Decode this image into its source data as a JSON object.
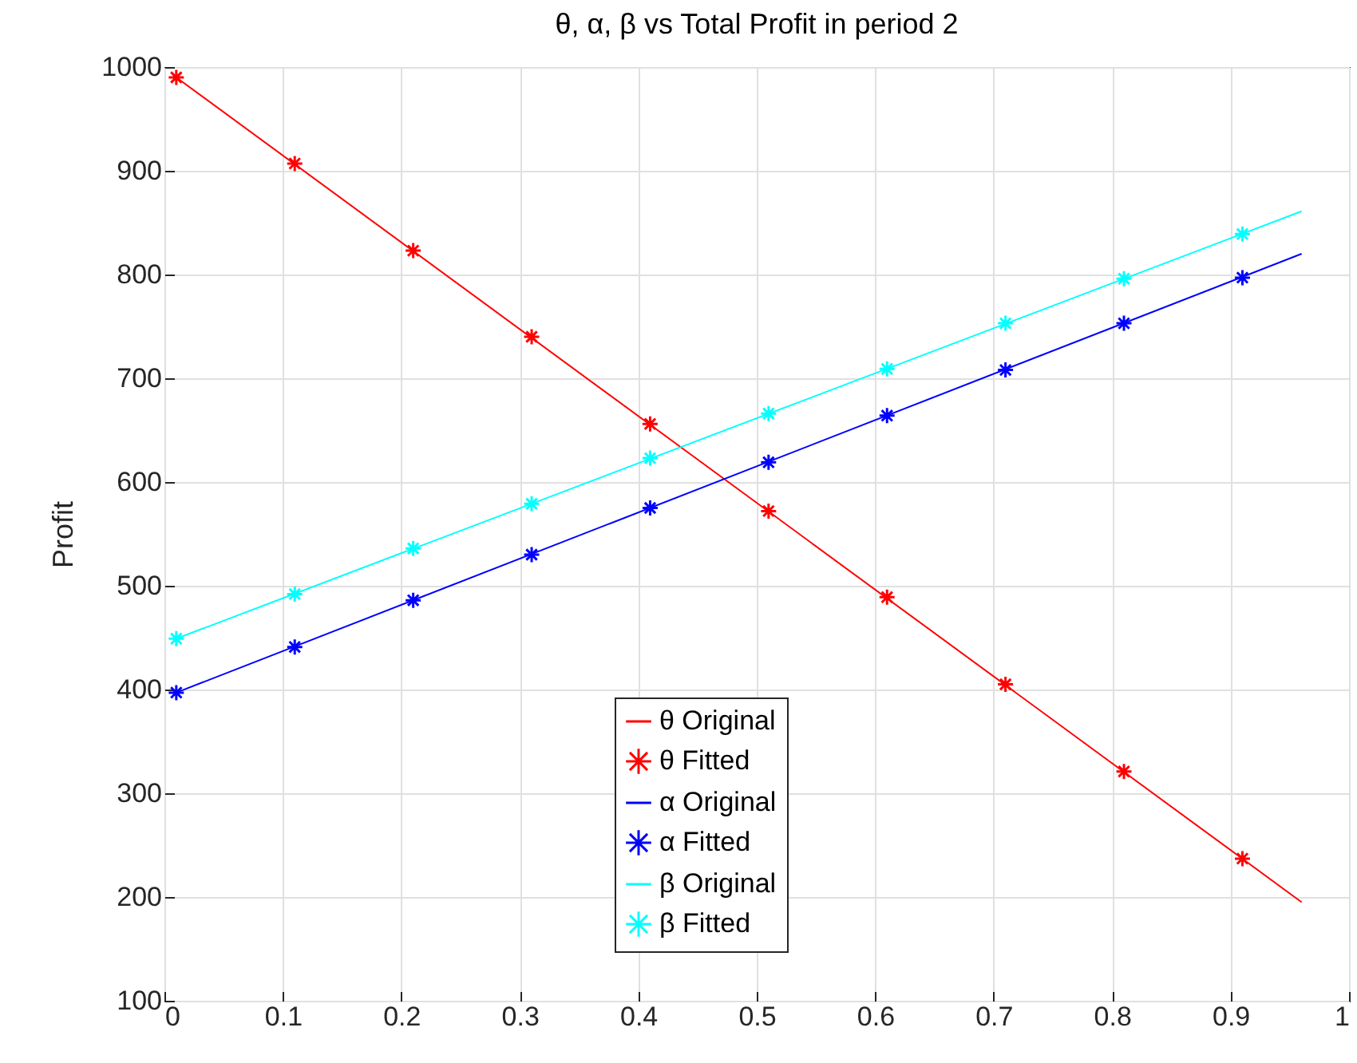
{
  "chart_data": {
    "type": "line",
    "title": "θ, α, β vs Total Profit in period 2",
    "ylabel": "Profit",
    "xlim": [
      0,
      1
    ],
    "xticks": [
      0,
      0.1,
      0.2,
      0.3,
      0.4,
      0.5,
      0.6,
      0.7,
      0.8,
      0.9,
      1
    ],
    "ylim": [
      100,
      1000
    ],
    "yticks": [
      100,
      200,
      300,
      400,
      500,
      600,
      700,
      800,
      900,
      1000
    ],
    "grid": true,
    "legend": "bottom",
    "line_style": "solid",
    "series": [
      {
        "name": "θ Original",
        "type": "line",
        "color": "#ff0000",
        "x": [
          0.01,
          0.96
        ],
        "values": [
          990,
          195
        ]
      },
      {
        "name": "θ Fitted",
        "type": "scatter",
        "marker": "cross",
        "color": "#ff0000",
        "x": [
          0.01,
          0.11,
          0.21,
          0.31,
          0.41,
          0.51,
          0.61,
          0.71,
          0.81,
          0.91
        ],
        "values": [
          990,
          907,
          823,
          740,
          656,
          572,
          489,
          405,
          321,
          237
        ]
      },
      {
        "name": "α Original",
        "type": "line",
        "color": "#0000ff",
        "x": [
          0.01,
          0.96
        ],
        "values": [
          397,
          820
        ]
      },
      {
        "name": "α Fitted",
        "type": "scatter",
        "marker": "cross",
        "color": "#0000ff",
        "x": [
          0.01,
          0.11,
          0.21,
          0.31,
          0.41,
          0.51,
          0.61,
          0.71,
          0.81,
          0.91
        ],
        "values": [
          397,
          441,
          486,
          530,
          575,
          619,
          664,
          708,
          753,
          797
        ]
      },
      {
        "name": "β Original",
        "type": "line",
        "color": "#00ffff",
        "x": [
          0.01,
          0.96
        ],
        "values": [
          449,
          861
        ]
      },
      {
        "name": "β Fitted",
        "type": "scatter",
        "marker": "cross",
        "color": "#00ffff",
        "x": [
          0.01,
          0.11,
          0.21,
          0.31,
          0.41,
          0.51,
          0.61,
          0.71,
          0.81,
          0.91
        ],
        "values": [
          449,
          492,
          536,
          579,
          623,
          666,
          709,
          753,
          796,
          839
        ]
      }
    ]
  }
}
